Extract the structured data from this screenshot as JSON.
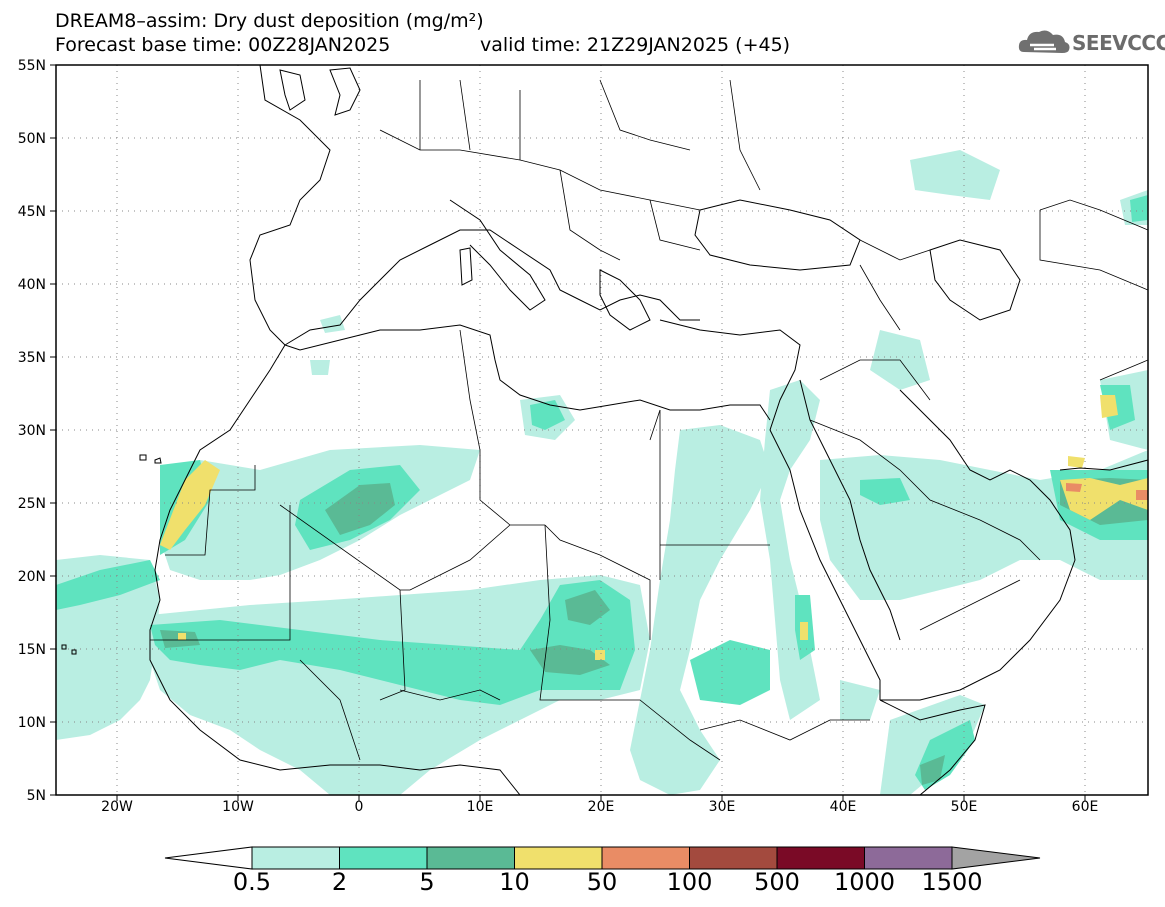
{
  "header": {
    "title": "DREAM8–assim: Dry dust deposition (mg/m²)",
    "base_time": "Forecast base time: 00Z28JAN2025",
    "valid_time": "valid time: 21Z29JAN2025 (+45)"
  },
  "logo": {
    "text": "SEEVCCC",
    "icon": "cloud-icon"
  },
  "map": {
    "lat_labels": [
      "55N",
      "50N",
      "45N",
      "40N",
      "35N",
      "30N",
      "25N",
      "20N",
      "15N",
      "10N",
      "5N"
    ],
    "lon_labels": [
      "20W",
      "10W",
      "0",
      "10E",
      "20E",
      "30E",
      "40E",
      "50E",
      "60E"
    ],
    "grid": "dotted"
  },
  "colorbar": {
    "labels": [
      "0.5",
      "2",
      "5",
      "10",
      "50",
      "100",
      "500",
      "1000",
      "1500"
    ],
    "colors": [
      "#b9eee2",
      "#5fe3bf",
      "#5aba95",
      "#f0e06c",
      "#e98c65",
      "#a34a3e",
      "#7a0a26",
      "#8d6a99",
      "#a3a3a3"
    ]
  }
}
